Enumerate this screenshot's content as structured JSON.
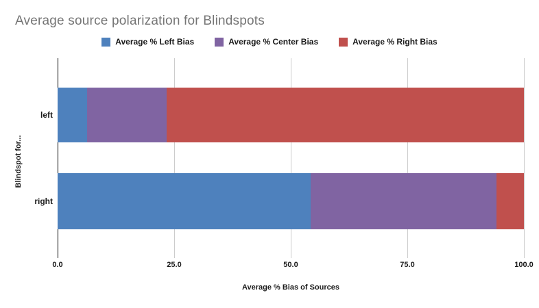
{
  "chart_data": {
    "type": "bar",
    "orientation": "horizontal",
    "stacked": true,
    "title": "Average source polarization for Blindspots",
    "xlabel": "Average % Bias of Sources",
    "ylabel": "Blindspot for...",
    "categories": [
      "left",
      "right"
    ],
    "series": [
      {
        "name": "Average % Left Bias",
        "color": "#4e81bd",
        "values": [
          6.3,
          54.3
        ]
      },
      {
        "name": "Average % Center Bias",
        "color": "#8064a2",
        "values": [
          17.1,
          39.8
        ]
      },
      {
        "name": "Average % Right Bias",
        "color": "#c0504d",
        "values": [
          76.6,
          5.9
        ]
      }
    ],
    "xlim": [
      0,
      100
    ],
    "xticks": [
      0,
      25,
      50,
      75,
      100
    ],
    "xtick_labels": [
      "0.0",
      "25.0",
      "50.0",
      "75.0",
      "100.0"
    ],
    "grid": true,
    "legend_position": "top-center"
  },
  "colors": {
    "title_text": "#757575",
    "axis_line": "#000000",
    "gridline": "#cccccc",
    "label_text": "#1a1a1a",
    "background": "#ffffff"
  }
}
